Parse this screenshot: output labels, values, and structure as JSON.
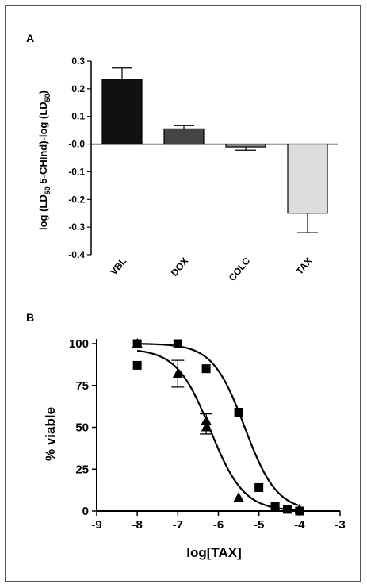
{
  "chart_data": [
    {
      "panel": "A",
      "type": "bar",
      "categories": [
        "VBL",
        "DOX",
        "COLC",
        "TAX"
      ],
      "values": [
        0.235,
        0.055,
        -0.01,
        -0.25
      ],
      "error": [
        0.04,
        0.012,
        0.012,
        0.07
      ],
      "colors": [
        "#111111",
        "#444444",
        "#888888",
        "#dddddd"
      ],
      "ylabel_parts": [
        "log (LD",
        "50",
        " 5-CHInd)-log (LD",
        "50",
        ")"
      ],
      "ylim": [
        -0.4,
        0.3
      ],
      "yticks": [
        "0.3",
        "0.2",
        "0.1",
        "-0.0",
        "-0.1",
        "-0.2",
        "-0.3",
        "-0.4"
      ]
    },
    {
      "panel": "B",
      "type": "scatter",
      "xlabel": "log[TAX]",
      "ylabel": "% viable",
      "xlim": [
        -9,
        -3
      ],
      "ylim": [
        0,
        100
      ],
      "xticks": [
        "-9",
        "-8",
        "-7",
        "-6",
        "-5",
        "-4",
        "-3"
      ],
      "yticks": [
        "100",
        "75",
        "50",
        "25",
        "0"
      ],
      "series": [
        {
          "marker": "square",
          "points": [
            [
              -8,
              87
            ],
            [
              -8,
              100
            ],
            [
              -7,
              100
            ],
            [
              -6.3,
              85
            ],
            [
              -5.5,
              59
            ],
            [
              -5,
              14
            ],
            [
              -4.6,
              3
            ],
            [
              -4.3,
              1
            ],
            [
              -4,
              0
            ]
          ],
          "fit": {
            "top": 100,
            "bottom": 0,
            "logEC50": -5.35,
            "hill": -1.1
          }
        },
        {
          "marker": "triangle",
          "points": [
            [
              -8,
              100
            ],
            [
              -7,
              82
            ],
            [
              -6.3,
              54
            ],
            [
              -6.3,
              50
            ],
            [
              -5.5,
              8
            ],
            [
              -4.6,
              2
            ],
            [
              -4,
              1
            ]
          ],
          "error": [
            [
              -7,
              82,
              8
            ],
            [
              -6.3,
              52,
              6
            ]
          ],
          "fit": {
            "top": 97,
            "bottom": 0,
            "logEC50": -6.2,
            "hill": -1.05
          }
        }
      ]
    }
  ],
  "panels": {
    "a_label": "A",
    "b_label": "B"
  }
}
